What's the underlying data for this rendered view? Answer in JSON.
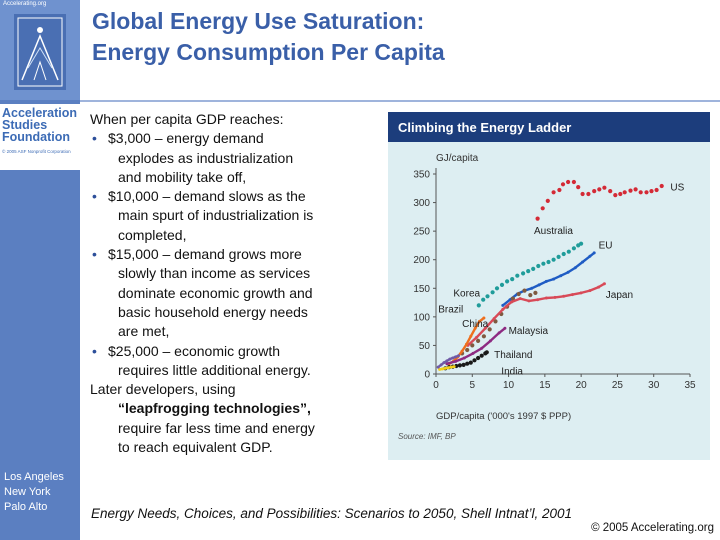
{
  "header": {
    "logo_url_text": "Accelerating.org",
    "title_line1": "Global Energy Use Saturation:",
    "title_line2": "Energy Consumption Per Capita"
  },
  "sidebar": {
    "org_name_line1": "Acceleration",
    "org_name_line2": "Studies",
    "org_name_line3": "Foundation",
    "org_copyright": "© 2005 ASF Nonprofit Corporation",
    "locations": [
      "Los Angeles",
      "New York",
      "Palo Alto"
    ]
  },
  "body": {
    "intro": "When per capita GDP reaches:",
    "bullet_char": "•",
    "bullets": [
      {
        "first": "$3,000 – energy demand",
        "rest": [
          "explodes as industrialization",
          "and mobility take off,"
        ]
      },
      {
        "first": "$10,000 – demand slows as the",
        "rest": [
          "main spurt of industrialization is",
          "completed,"
        ]
      },
      {
        "first": "$15,000 – demand grows more",
        "rest": [
          "slowly than income as services",
          "dominate economic growth and",
          "basic household energy needs",
          "are met,"
        ]
      },
      {
        "first": "$25,000 – economic growth",
        "rest": [
          "requires little additional energy."
        ]
      }
    ],
    "later_line": "Later developers, using",
    "later_strong": "“leapfrogging technologies”,",
    "later_rest": [
      "require far less time and energy",
      "to reach equivalent GDP."
    ]
  },
  "footer": {
    "citation": "Energy Needs, Choices, and Possibilities: Scenarios to 2050, Shell Intnat’l, 2001",
    "copyright": "© 2005 Accelerating.org"
  },
  "colors": {
    "sidebar": "#5b7fc1",
    "title": "#3a5fa8",
    "chart_header": "#1c3d7c",
    "chart_bg": "#ddeef2",
    "US": "#d42a36",
    "Australia": "#1f9c9a",
    "EU": "#1f5cc4",
    "Korea": "#7e5a40",
    "Japan": "#d84a58",
    "Brazil": "#ee6f1e",
    "Malaysia": "#8d2b82",
    "Thailand": "#1a1a1a",
    "India": "#f3cf19",
    "China": "#6f5aa6"
  },
  "chart_data": {
    "type": "line",
    "title": "Climbing the Energy Ladder",
    "ylabel": "GJ/capita",
    "xlabel": "GDP/capita ('000's 1997 $ PPP)",
    "source": "Source: IMF, BP",
    "xlim": [
      0,
      35
    ],
    "ylim": [
      0,
      350
    ],
    "xticks": [
      0,
      5,
      10,
      15,
      20,
      25,
      30,
      35
    ],
    "yticks": [
      0,
      50,
      100,
      150,
      200,
      250,
      300,
      350
    ],
    "series": [
      {
        "name": "US",
        "label": "US",
        "color_key": "US",
        "style": "dot",
        "x": [
          14,
          14.7,
          15.4,
          16.2,
          17,
          17.5,
          18.2,
          19,
          19.6,
          20.2,
          21,
          21.8,
          22.5,
          23.2,
          24,
          24.7,
          25.4,
          26,
          26.8,
          27.5,
          28.2,
          29,
          29.7,
          30.4,
          31.1
        ],
        "y": [
          272,
          290,
          303,
          318,
          322,
          332,
          336,
          336,
          327,
          315,
          315,
          320,
          323,
          326,
          320,
          313,
          315,
          318,
          321,
          323,
          318,
          318,
          320,
          322,
          329
        ]
      },
      {
        "name": "Australia",
        "label": "Australia",
        "color_key": "Australia",
        "style": "dot",
        "x": [
          5.9,
          6.5,
          7.1,
          7.8,
          8.4,
          9.1,
          9.8,
          10.5,
          11.2,
          12,
          12.7,
          13.4,
          14.1,
          14.8,
          15.5,
          16.2,
          16.9,
          17.6,
          18.3,
          19,
          19.6,
          20
        ],
        "y": [
          120,
          130,
          136,
          143,
          150,
          156,
          162,
          166,
          172,
          176,
          180,
          184,
          189,
          193,
          196,
          200,
          205,
          210,
          214,
          220,
          225,
          228
        ]
      },
      {
        "name": "EU",
        "label": "EU",
        "color_key": "EU",
        "style": "line",
        "x": [
          9.2,
          10.2,
          11.2,
          12.2,
          13.2,
          14.2,
          15.2,
          16.2,
          17.2,
          18.2,
          19.2,
          20.2,
          21.2,
          21.8
        ],
        "y": [
          120,
          130,
          140,
          146,
          150,
          156,
          162,
          166,
          172,
          178,
          186,
          196,
          206,
          212
        ]
      },
      {
        "name": "Korea",
        "label": "Korea",
        "color_key": "Korea",
        "style": "dot",
        "x": [
          3.6,
          4.3,
          5,
          5.8,
          6.6,
          7.4,
          8.2,
          9,
          9.8,
          10.6,
          11.4,
          12.2,
          13,
          13.7
        ],
        "y": [
          36,
          42,
          50,
          58,
          66,
          78,
          92,
          105,
          118,
          132,
          140,
          146,
          138,
          142
        ]
      },
      {
        "name": "Japan",
        "label": "Japan",
        "color_key": "Japan",
        "style": "line",
        "x": [
          4.4,
          5.6,
          6.8,
          8,
          9.2,
          10.4,
          11.6,
          12.8,
          14,
          15.2,
          16.4,
          17.6,
          18.8,
          20,
          21.2,
          22.4,
          23.2
        ],
        "y": [
          50,
          64,
          80,
          97,
          113,
          126,
          132,
          128,
          130,
          133,
          134,
          136,
          139,
          142,
          146,
          152,
          158
        ]
      },
      {
        "name": "Brazil",
        "label": "Brazil",
        "color_key": "Brazil",
        "style": "line",
        "x": [
          1.8,
          2.4,
          3,
          3.6,
          4.2,
          4.8,
          5.4,
          6,
          6.6
        ],
        "y": [
          18,
          22,
          30,
          40,
          52,
          66,
          80,
          92,
          98
        ]
      },
      {
        "name": "Malaysia",
        "label": "Malaysia",
        "color_key": "Malaysia",
        "style": "line",
        "x": [
          1.5,
          2.7,
          3.9,
          5.1,
          6.3,
          7.5,
          8.7,
          9.5
        ],
        "y": [
          18,
          22,
          28,
          36,
          45,
          58,
          72,
          80
        ]
      },
      {
        "name": "Thailand",
        "label": "Thailand",
        "color_key": "Thailand",
        "style": "dot",
        "x": [
          1.3,
          1.8,
          2.3,
          2.8,
          3.3,
          3.8,
          4.3,
          4.8,
          5.3,
          5.8,
          6.3,
          6.8,
          7
        ],
        "y": [
          10,
          12,
          13,
          14,
          15,
          16,
          18,
          20,
          24,
          28,
          32,
          36,
          38
        ]
      },
      {
        "name": "India",
        "label": "India",
        "color_key": "India",
        "style": "line",
        "x": [
          0.5,
          0.9,
          1.3,
          1.7,
          2.1,
          2.5
        ],
        "y": [
          8,
          9,
          10,
          11,
          12,
          13
        ]
      },
      {
        "name": "China",
        "label": "China",
        "color_key": "China",
        "style": "line",
        "x": [
          0.3,
          0.7,
          1.1,
          1.5,
          1.9,
          2.3,
          2.7,
          3.1
        ],
        "y": [
          12,
          16,
          20,
          23,
          26,
          28,
          30,
          32
        ]
      }
    ]
  }
}
